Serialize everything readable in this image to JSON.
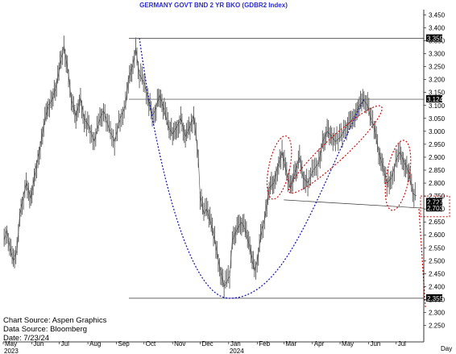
{
  "chart_data": {
    "type": "line",
    "title": "GERMANY GOVT BND 2 YR BKO (GDBR2 Index)",
    "x_axis_unit_label": "Day",
    "x_months": [
      {
        "label": "May",
        "date": "2023-05-01"
      },
      {
        "label": "Jun",
        "date": "2023-06-01"
      },
      {
        "label": "Jul",
        "date": "2023-07-01"
      },
      {
        "label": "Aug",
        "date": "2023-08-01"
      },
      {
        "label": "Sep",
        "date": "2023-09-01"
      },
      {
        "label": "Oct",
        "date": "2023-10-01"
      },
      {
        "label": "Nov",
        "date": "2023-11-01"
      },
      {
        "label": "Dec",
        "date": "2023-12-01"
      },
      {
        "label": "Jan",
        "date": "2024-01-01"
      },
      {
        "label": "Feb",
        "date": "2024-02-01"
      },
      {
        "label": "Mar",
        "date": "2024-03-01"
      },
      {
        "label": "Apr",
        "date": "2024-04-01"
      },
      {
        "label": "May",
        "date": "2024-05-01"
      },
      {
        "label": "Jun",
        "date": "2024-06-01"
      },
      {
        "label": "Jul",
        "date": "2024-07-01"
      }
    ],
    "x_years": [
      {
        "label": "2023",
        "date": "2023-05-01"
      },
      {
        "label": "2024",
        "date": "2024-01-01"
      }
    ],
    "x_range": [
      "2023-05-01",
      "2024-07-31"
    ],
    "y_ticks": [
      "2.250",
      "2.300",
      "2.350",
      "2.400",
      "2.450",
      "2.500",
      "2.550",
      "2.600",
      "2.650",
      "2.700",
      "2.750",
      "2.800",
      "2.850",
      "2.900",
      "2.950",
      "3.000",
      "3.050",
      "3.100",
      "3.150",
      "3.200",
      "3.250",
      "3.300",
      "3.350",
      "3.400",
      "3.450"
    ],
    "ylim": [
      2.23,
      3.47
    ],
    "y_axis_side": "right",
    "grid": false,
    "series": [
      {
        "values": [
          [
            "2023-05-02",
            2.58
          ],
          [
            "2023-05-05",
            2.62
          ],
          [
            "2023-05-08",
            2.55
          ],
          [
            "2023-05-12",
            2.5
          ],
          [
            "2023-05-16",
            2.54
          ],
          [
            "2023-05-19",
            2.68
          ],
          [
            "2023-05-23",
            2.75
          ],
          [
            "2023-05-26",
            2.8
          ],
          [
            "2023-05-31",
            2.74
          ],
          [
            "2023-06-05",
            2.85
          ],
          [
            "2023-06-09",
            2.92
          ],
          [
            "2023-06-14",
            3.02
          ],
          [
            "2023-06-19",
            3.1
          ],
          [
            "2023-06-23",
            3.12
          ],
          [
            "2023-06-28",
            3.18
          ],
          [
            "2023-07-03",
            3.28
          ],
          [
            "2023-07-06",
            3.33
          ],
          [
            "2023-07-11",
            3.22
          ],
          [
            "2023-07-14",
            3.12
          ],
          [
            "2023-07-19",
            3.06
          ],
          [
            "2023-07-24",
            3.13
          ],
          [
            "2023-07-28",
            3.05
          ],
          [
            "2023-08-02",
            3.02
          ],
          [
            "2023-08-08",
            2.96
          ],
          [
            "2023-08-14",
            3.05
          ],
          [
            "2023-08-18",
            3.08
          ],
          [
            "2023-08-24",
            3.01
          ],
          [
            "2023-08-30",
            2.96
          ],
          [
            "2023-09-05",
            3.05
          ],
          [
            "2023-09-11",
            3.1
          ],
          [
            "2023-09-14",
            3.2
          ],
          [
            "2023-09-19",
            3.26
          ],
          [
            "2023-09-22",
            3.32
          ],
          [
            "2023-09-26",
            3.22
          ],
          [
            "2023-10-02",
            3.18
          ],
          [
            "2023-10-05",
            3.13
          ],
          [
            "2023-10-10",
            3.06
          ],
          [
            "2023-10-13",
            3.08
          ],
          [
            "2023-10-18",
            3.14
          ],
          [
            "2023-10-23",
            3.08
          ],
          [
            "2023-10-27",
            3.02
          ],
          [
            "2023-11-01",
            2.99
          ],
          [
            "2023-11-06",
            3.02
          ],
          [
            "2023-11-10",
            3.05
          ],
          [
            "2023-11-15",
            2.98
          ],
          [
            "2023-11-20",
            3.02
          ],
          [
            "2023-11-24",
            3.06
          ],
          [
            "2023-11-29",
            2.9
          ],
          [
            "2023-12-01",
            2.75
          ],
          [
            "2023-12-05",
            2.68
          ],
          [
            "2023-12-08",
            2.7
          ],
          [
            "2023-12-13",
            2.64
          ],
          [
            "2023-12-18",
            2.56
          ],
          [
            "2023-12-22",
            2.48
          ],
          [
            "2023-12-27",
            2.4
          ],
          [
            "2024-01-02",
            2.44
          ],
          [
            "2024-01-05",
            2.58
          ],
          [
            "2024-01-10",
            2.62
          ],
          [
            "2024-01-15",
            2.65
          ],
          [
            "2024-01-19",
            2.62
          ],
          [
            "2024-01-24",
            2.55
          ],
          [
            "2024-01-29",
            2.46
          ],
          [
            "2024-02-01",
            2.5
          ],
          [
            "2024-02-06",
            2.62
          ],
          [
            "2024-02-09",
            2.66
          ],
          [
            "2024-02-14",
            2.78
          ],
          [
            "2024-02-19",
            2.8
          ],
          [
            "2024-02-23",
            2.86
          ],
          [
            "2024-02-28",
            2.92
          ],
          [
            "2024-03-04",
            2.84
          ],
          [
            "2024-03-08",
            2.78
          ],
          [
            "2024-03-13",
            2.84
          ],
          [
            "2024-03-18",
            2.9
          ],
          [
            "2024-03-22",
            2.82
          ],
          [
            "2024-03-27",
            2.8
          ],
          [
            "2024-04-02",
            2.85
          ],
          [
            "2024-04-08",
            2.88
          ],
          [
            "2024-04-12",
            2.96
          ],
          [
            "2024-04-17",
            3.0
          ],
          [
            "2024-04-22",
            2.98
          ],
          [
            "2024-04-26",
            2.96
          ],
          [
            "2024-05-02",
            2.98
          ],
          [
            "2024-05-08",
            3.02
          ],
          [
            "2024-05-13",
            3.04
          ],
          [
            "2024-05-17",
            3.06
          ],
          [
            "2024-05-22",
            3.1
          ],
          [
            "2024-05-27",
            3.12
          ],
          [
            "2024-05-31",
            3.1
          ],
          [
            "2024-06-04",
            3.04
          ],
          [
            "2024-06-07",
            3.02
          ],
          [
            "2024-06-12",
            2.92
          ],
          [
            "2024-06-17",
            2.86
          ],
          [
            "2024-06-21",
            2.8
          ],
          [
            "2024-06-26",
            2.82
          ],
          [
            "2024-07-02",
            2.9
          ],
          [
            "2024-07-05",
            2.92
          ],
          [
            "2024-07-10",
            2.88
          ],
          [
            "2024-07-15",
            2.84
          ],
          [
            "2024-07-19",
            2.76
          ],
          [
            "2024-07-23",
            2.75
          ]
        ]
      }
    ],
    "horizontal_levels": [
      {
        "value": 3.359,
        "label": "3.359"
      },
      {
        "value": 3.124,
        "label": "3.124"
      },
      {
        "value": 2.355,
        "label": "2.355"
      }
    ],
    "last_value_labels": [
      {
        "value": 2.727,
        "label": "2.727"
      },
      {
        "value": 2.703,
        "label": "2.703"
      }
    ],
    "support_line": {
      "from": [
        "2024-03-01",
        2.735
      ],
      "to": [
        "2024-07-31",
        2.703
      ]
    },
    "colors": {
      "price": "#666666",
      "blue_arc": "#1e1ebe",
      "red_ovals": "#d01010",
      "title": "#2b2bd6",
      "label_box": "#000000"
    },
    "source_lines": [
      "Chart Source:  Aspen  Graphics",
      "Data  Source:  Bloomberg",
      "Date:    7/23/24"
    ]
  }
}
